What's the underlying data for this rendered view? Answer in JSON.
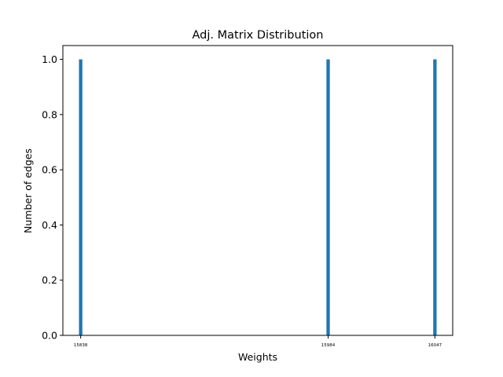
{
  "chart_data": {
    "type": "bar",
    "title": "Adj. Matrix Distribution",
    "xlabel": "Weights",
    "ylabel": "Number of edges",
    "x": [
      15838,
      15984,
      16047
    ],
    "values": [
      1.0,
      1.0,
      1.0
    ],
    "x_tick_labels": [
      "15838",
      "15984",
      "16047"
    ],
    "y_ticks": [
      0.0,
      0.2,
      0.4,
      0.6,
      0.8,
      1.0
    ],
    "y_tick_labels": [
      "0.0",
      "0.2",
      "0.4",
      "0.6",
      "0.8",
      "1.0"
    ],
    "xlim": [
      15827.5,
      16057.5
    ],
    "ylim": [
      0,
      1.05
    ],
    "bar_width": 2,
    "grid": false,
    "bar_color": "#1f77b4"
  }
}
